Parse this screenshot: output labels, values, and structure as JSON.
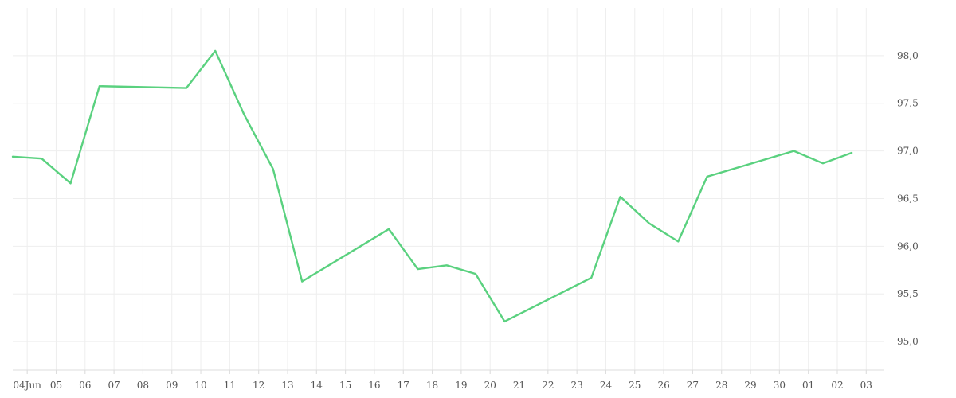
{
  "chart_data": {
    "type": "line",
    "title": "",
    "xlabel": "",
    "ylabel": "",
    "grid": true,
    "y_axis_side": "right",
    "ylim": [
      94.7,
      98.5
    ],
    "yticks": [
      95.0,
      95.5,
      96.0,
      96.5,
      97.0,
      97.5,
      98.0
    ],
    "ytick_labels": [
      "95,0",
      "95,5",
      "96,0",
      "96,5",
      "97,0",
      "97,5",
      "98,0"
    ],
    "xlim": [
      "2025-06-03",
      "2025-07-03"
    ],
    "xticks": [
      "2025-06-04",
      "2025-06-05",
      "2025-06-06",
      "2025-06-07",
      "2025-06-08",
      "2025-06-09",
      "2025-06-10",
      "2025-06-11",
      "2025-06-12",
      "2025-06-13",
      "2025-06-14",
      "2025-06-15",
      "2025-06-16",
      "2025-06-17",
      "2025-06-18",
      "2025-06-19",
      "2025-06-20",
      "2025-06-21",
      "2025-06-22",
      "2025-06-23",
      "2025-06-24",
      "2025-06-25",
      "2025-06-26",
      "2025-06-27",
      "2025-06-28",
      "2025-06-29",
      "2025-06-30",
      "2025-07-01",
      "2025-07-02",
      "2025-07-03"
    ],
    "xtick_labels": [
      "04Jun",
      "05",
      "06",
      "07",
      "08",
      "09",
      "10",
      "11",
      "12",
      "13",
      "14",
      "15",
      "16",
      "17",
      "18",
      "19",
      "20",
      "21",
      "22",
      "23",
      "24",
      "25",
      "26",
      "27",
      "28",
      "29",
      "30",
      "01",
      "02",
      "03"
    ],
    "series": [
      {
        "color": "#5ad17f",
        "x": [
          "2025-06-03 12:00",
          "2025-06-04 12:00",
          "2025-06-05 12:00",
          "2025-06-06 12:00",
          "2025-06-09 12:00",
          "2025-06-10 12:00",
          "2025-06-11 12:00",
          "2025-06-12 12:00",
          "2025-06-13 12:00",
          "2025-06-16 12:00",
          "2025-06-17 12:00",
          "2025-06-18 12:00",
          "2025-06-19 12:00",
          "2025-06-20 12:00",
          "2025-06-23 12:00",
          "2025-06-24 12:00",
          "2025-06-25 12:00",
          "2025-06-26 12:00",
          "2025-06-27 12:00",
          "2025-06-30 12:00",
          "2025-07-01 12:00",
          "2025-07-02 12:00"
        ],
        "y": [
          96.94,
          96.92,
          96.66,
          97.68,
          97.66,
          98.05,
          97.38,
          96.81,
          95.63,
          96.18,
          95.76,
          95.8,
          95.71,
          95.21,
          95.67,
          96.52,
          96.24,
          96.05,
          96.73,
          97.0,
          96.87,
          96.98
        ]
      }
    ]
  }
}
